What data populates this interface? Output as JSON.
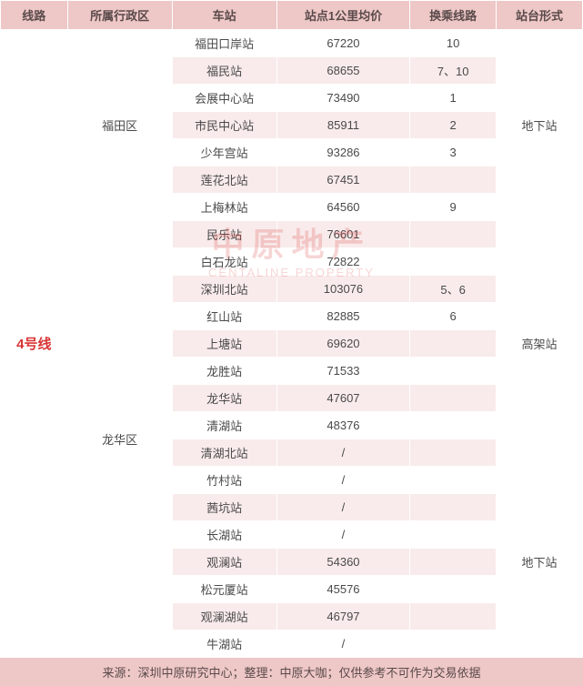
{
  "headers": [
    "线路",
    "所属行政区",
    "车站",
    "站点1公里均价",
    "换乘线路",
    "站台形式"
  ],
  "line_label": "4号线",
  "footer": "来源：深圳中原研究中心；整理：中原大咖；仅供参考不可作为交易依据",
  "watermark_cn": "中原地产",
  "watermark_en": "CENTALINE PROPERTY",
  "rows": [
    {
      "station": "福田口岸站",
      "price": "67220",
      "transfer": "10",
      "district": "福田区",
      "district_span": 7,
      "platform": "地下站",
      "platform_span": 7,
      "stripe": "odd"
    },
    {
      "station": "福民站",
      "price": "68655",
      "transfer": "7、10",
      "stripe": "even"
    },
    {
      "station": "会展中心站",
      "price": "73490",
      "transfer": "1",
      "stripe": "odd"
    },
    {
      "station": "市民中心站",
      "price": "85911",
      "transfer": "2",
      "stripe": "even"
    },
    {
      "station": "少年宫站",
      "price": "93286",
      "transfer": "3",
      "stripe": "odd"
    },
    {
      "station": "莲花北站",
      "price": "67451",
      "transfer": "",
      "stripe": "even"
    },
    {
      "station": "上梅林站",
      "price": "64560",
      "transfer": "9",
      "stripe": "odd"
    },
    {
      "station": "民乐站",
      "price": "76601",
      "transfer": "",
      "district": "龙华区",
      "district_span": 16,
      "platform": "高架站",
      "platform_span": 9,
      "stripe": "even"
    },
    {
      "station": "白石龙站",
      "price": "72822",
      "transfer": "",
      "stripe": "odd"
    },
    {
      "station": "深圳北站",
      "price": "103076",
      "transfer": "5、6",
      "stripe": "even"
    },
    {
      "station": "红山站",
      "price": "82885",
      "transfer": "6",
      "stripe": "odd"
    },
    {
      "station": "上塘站",
      "price": "69620",
      "transfer": "",
      "stripe": "even"
    },
    {
      "station": "龙胜站",
      "price": "71533",
      "transfer": "",
      "stripe": "odd"
    },
    {
      "station": "龙华站",
      "price": "47607",
      "transfer": "",
      "stripe": "even"
    },
    {
      "station": "清湖站",
      "price": "48376",
      "transfer": "",
      "stripe": "odd"
    },
    {
      "station": "清湖北站",
      "price": "/",
      "transfer": "",
      "stripe": "even"
    },
    {
      "station": "竹村站",
      "price": "/",
      "transfer": "",
      "platform": "地下站",
      "platform_span": 7,
      "stripe": "odd"
    },
    {
      "station": "茜坑站",
      "price": "/",
      "transfer": "",
      "stripe": "even"
    },
    {
      "station": "长湖站",
      "price": "/",
      "transfer": "",
      "stripe": "odd"
    },
    {
      "station": "观澜站",
      "price": "54360",
      "transfer": "",
      "stripe": "even"
    },
    {
      "station": "松元厦站",
      "price": "45576",
      "transfer": "",
      "stripe": "odd"
    },
    {
      "station": "观澜湖站",
      "price": "46797",
      "transfer": "",
      "stripe": "even"
    },
    {
      "station": "牛湖站",
      "price": "/",
      "transfer": "",
      "stripe": "odd"
    }
  ]
}
